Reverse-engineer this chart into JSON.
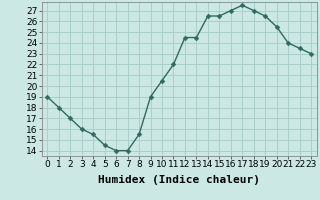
{
  "x": [
    0,
    1,
    2,
    3,
    4,
    5,
    6,
    7,
    8,
    9,
    10,
    11,
    12,
    13,
    14,
    15,
    16,
    17,
    18,
    19,
    20,
    21,
    22,
    23
  ],
  "y": [
    19,
    18,
    17,
    16,
    15.5,
    14.5,
    14,
    14,
    15.5,
    19,
    20.5,
    22,
    24.5,
    24.5,
    26.5,
    26.5,
    27,
    27.5,
    27,
    26.5,
    25.5,
    24,
    23.5,
    23
  ],
  "xlabel": "Humidex (Indice chaleur)",
  "xlim": [
    -0.5,
    23.5
  ],
  "ylim": [
    13.5,
    27.8
  ],
  "yticks": [
    14,
    15,
    16,
    17,
    18,
    19,
    20,
    21,
    22,
    23,
    24,
    25,
    26,
    27
  ],
  "xticks": [
    0,
    1,
    2,
    3,
    4,
    5,
    6,
    7,
    8,
    9,
    10,
    11,
    12,
    13,
    14,
    15,
    16,
    17,
    18,
    19,
    20,
    21,
    22,
    23
  ],
  "line_color": "#2e6b5e",
  "marker_color": "#2e6b5e",
  "bg_color": "#cce8e4",
  "grid_color": "#aacfcb",
  "tick_label_size": 6.5,
  "xlabel_size": 8,
  "marker_size": 2.5,
  "line_width": 1.0
}
